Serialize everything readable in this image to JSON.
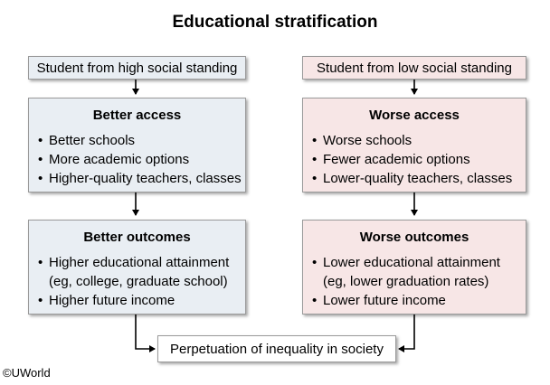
{
  "title": "Educational stratification",
  "left": {
    "header": "Student from high social standing",
    "access": {
      "title": "Better access",
      "items": [
        "Better schools",
        "More academic options",
        "Higher-quality teachers, classes"
      ]
    },
    "outcomes": {
      "title": "Better outcomes",
      "items": [
        "Higher educational attainment",
        "(eg, college, graduate school)",
        "Higher future income"
      ]
    }
  },
  "right": {
    "header": "Student from low social standing",
    "access": {
      "title": "Worse access",
      "items": [
        "Worse schools",
        "Fewer academic options",
        "Lower-quality teachers, classes"
      ]
    },
    "outcomes": {
      "title": "Worse outcomes",
      "items": [
        "Lower educational attainment",
        "(eg, lower graduation rates)",
        "Lower future income"
      ]
    }
  },
  "result": "Perpetuation of inequality in society",
  "copyright": "©UWorld",
  "colors": {
    "left_fill": "#e9eef3",
    "right_fill": "#f7e6e6",
    "border": "#9a9a9a",
    "arrow": "#000000"
  }
}
